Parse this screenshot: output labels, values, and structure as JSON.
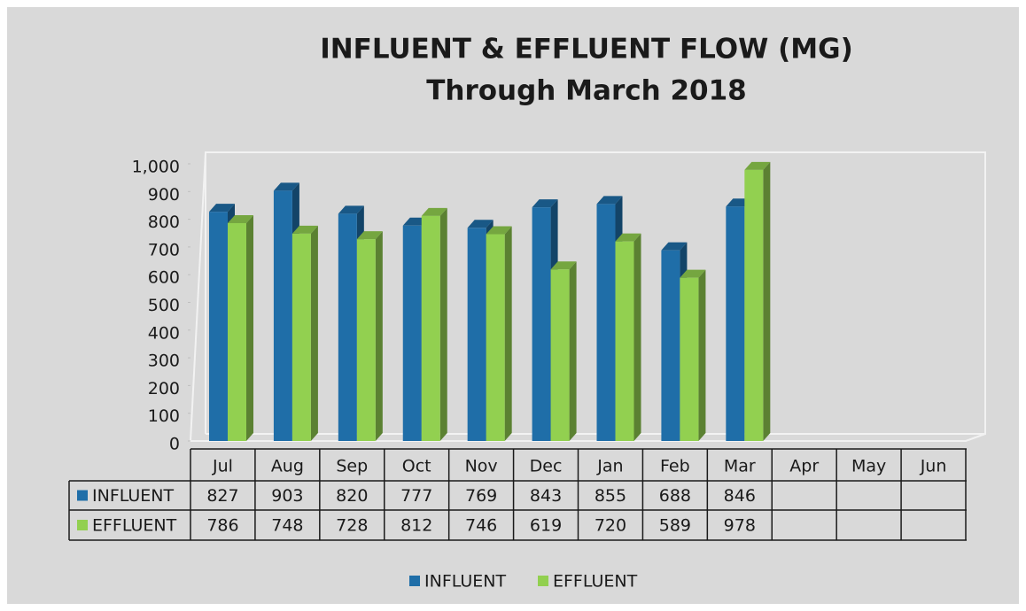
{
  "chart_data": {
    "type": "bar3d",
    "title": "INFLUENT & EFFLUENT FLOW (MG)",
    "subtitle": "Through March 2018",
    "categories": [
      "Jul",
      "Aug",
      "Sep",
      "Oct",
      "Nov",
      "Dec",
      "Jan",
      "Feb",
      "Mar",
      "Apr",
      "May",
      "Jun"
    ],
    "series": [
      {
        "name": "INFLUENT",
        "color": "#1f6ea8",
        "values": [
          827,
          903,
          820,
          777,
          769,
          843,
          855,
          688,
          846,
          null,
          null,
          null
        ]
      },
      {
        "name": "EFFLUENT",
        "color": "#92d050",
        "values": [
          786,
          748,
          728,
          812,
          746,
          619,
          720,
          589,
          978,
          null,
          null,
          null
        ]
      }
    ],
    "ylim": [
      0,
      1000
    ],
    "yticks": [
      0,
      100,
      200,
      300,
      400,
      500,
      600,
      700,
      800,
      900,
      {
        "value": 1000,
        "label": "1,000"
      }
    ],
    "data_table": true,
    "legend": "bottom"
  }
}
